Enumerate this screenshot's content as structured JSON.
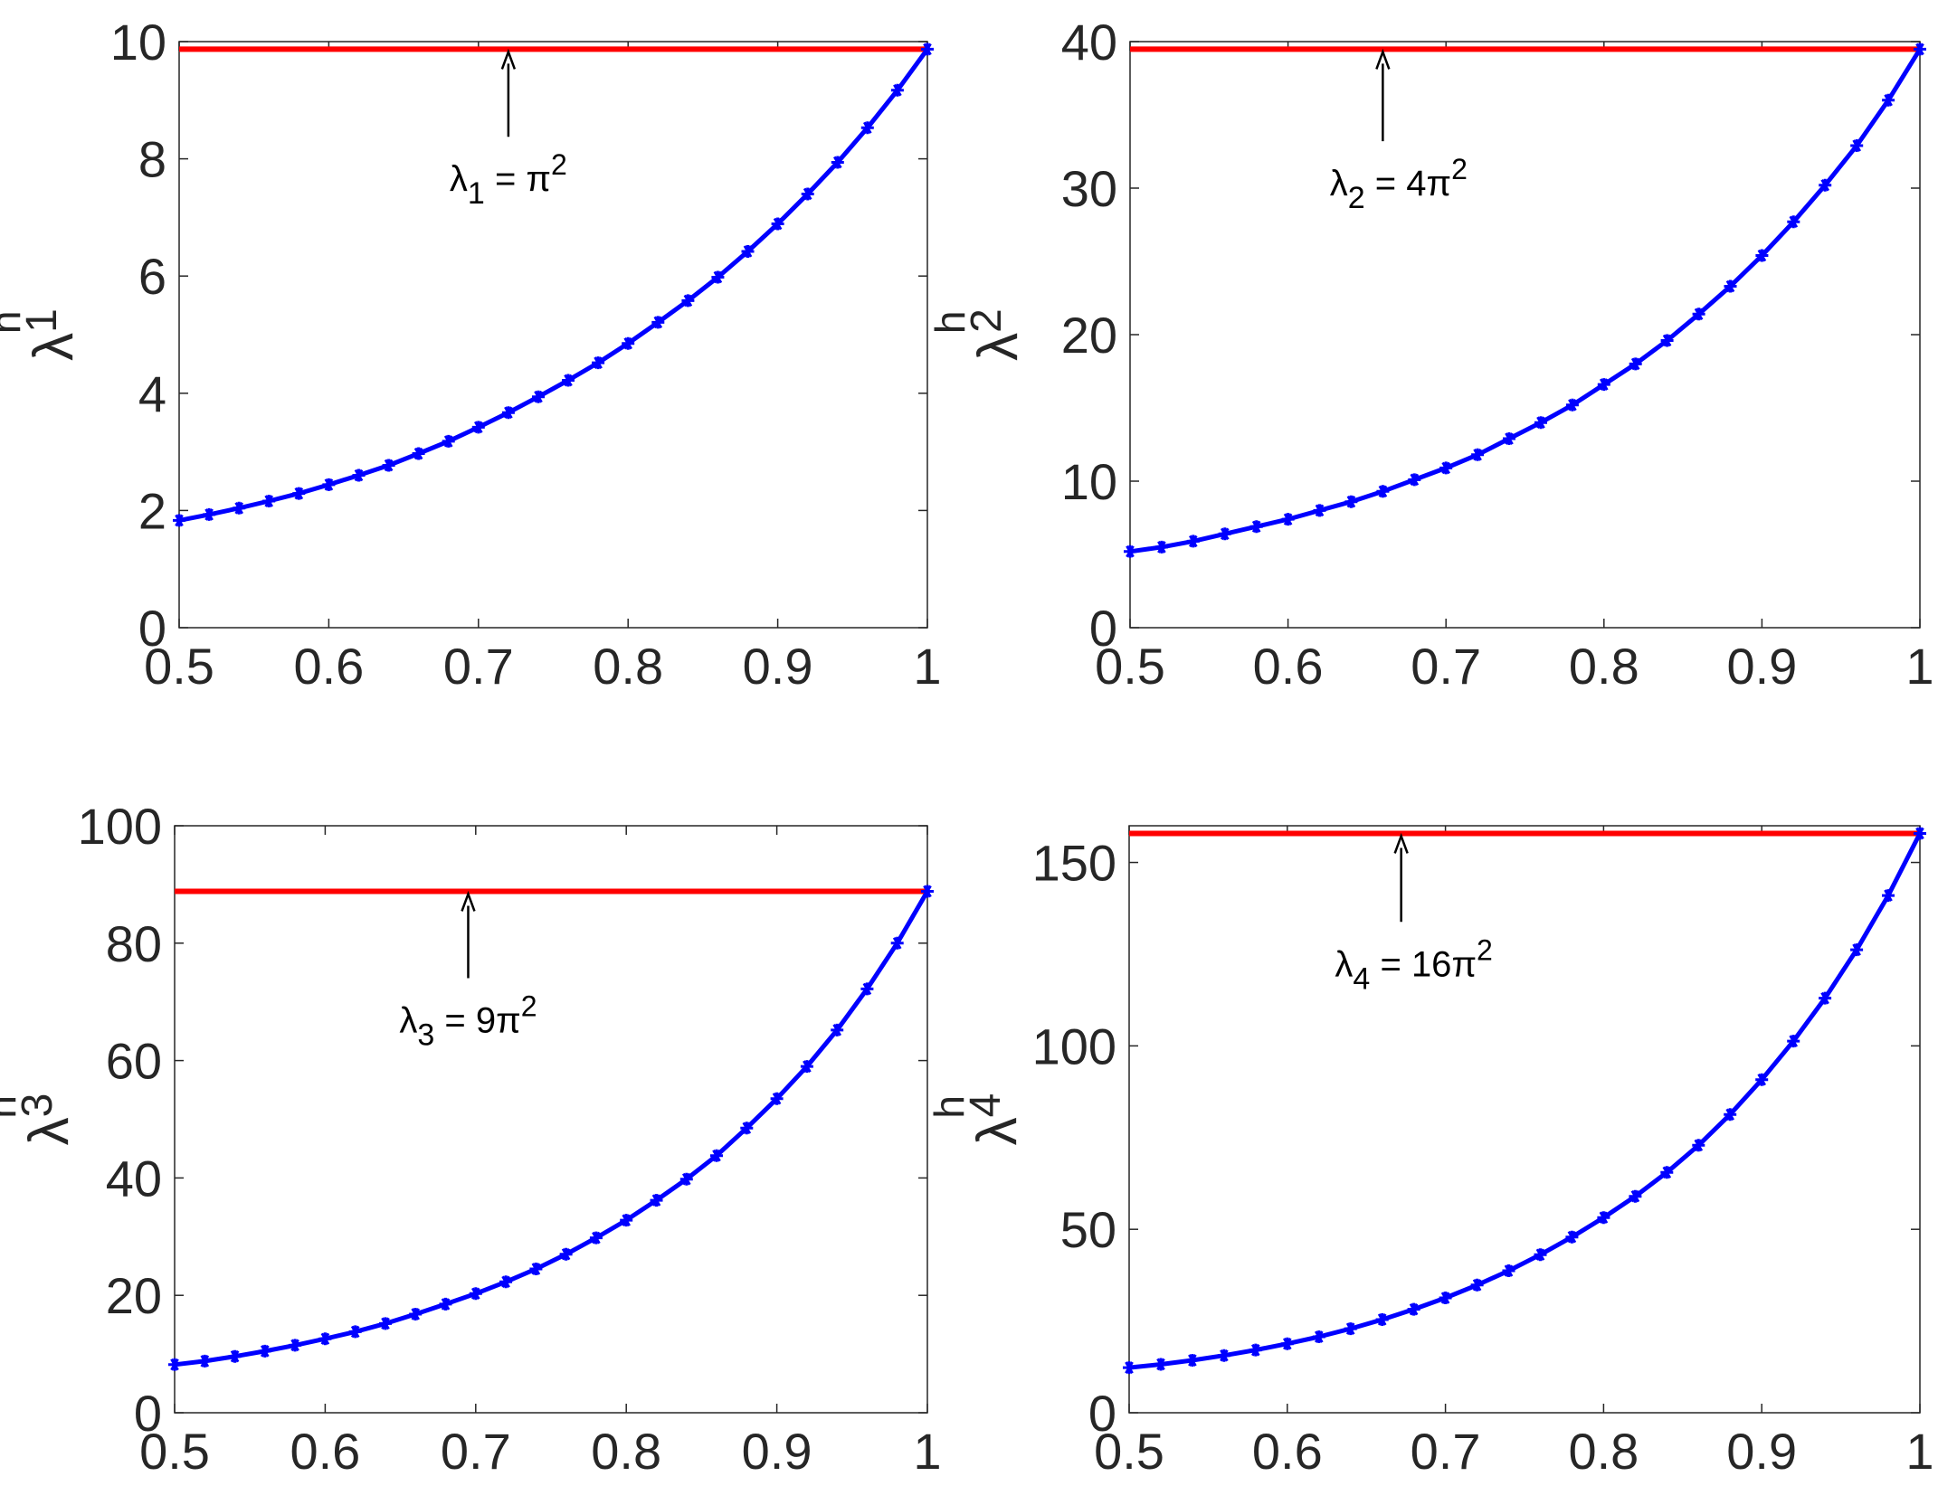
{
  "chart_data": [
    {
      "type": "line",
      "ylabel": {
        "symbol": "λ",
        "sup": "h",
        "sub": "1"
      },
      "xlim": [
        0.5,
        1
      ],
      "ylim": [
        0,
        10
      ],
      "xticks": [
        "0.5",
        "0.6",
        "0.7",
        "0.8",
        "0.9",
        "1"
      ],
      "yticks": [
        "0",
        "2",
        "4",
        "6",
        "8",
        "10"
      ],
      "reference_line": {
        "value": 9.87,
        "color": "#ff0000"
      },
      "annotation": {
        "symbol": "λ",
        "sub": "1",
        "rhs_prefix": " = ",
        "rhs_coef": "",
        "rhs_pi": "π",
        "rhs_sup": "2",
        "arrow_x": 0.72,
        "text_x": 0.72,
        "text_y": 7.45
      },
      "series": [
        {
          "color": "#0000ff",
          "marker": "star",
          "x": [
            0.5,
            0.52,
            0.54,
            0.56,
            0.58,
            0.6,
            0.62,
            0.64,
            0.66,
            0.68,
            0.7,
            0.72,
            0.74,
            0.76,
            0.78,
            0.8,
            0.82,
            0.84,
            0.86,
            0.88,
            0.9,
            0.92,
            0.94,
            0.96,
            0.98,
            1.0
          ],
          "y": [
            1.83,
            1.93,
            2.04,
            2.16,
            2.29,
            2.44,
            2.6,
            2.77,
            2.97,
            3.18,
            3.42,
            3.67,
            3.94,
            4.22,
            4.52,
            4.85,
            5.21,
            5.58,
            5.98,
            6.42,
            6.89,
            7.4,
            7.94,
            8.53,
            9.17,
            9.87
          ]
        }
      ]
    },
    {
      "type": "line",
      "ylabel": {
        "symbol": "λ",
        "sup": "h",
        "sub": "2"
      },
      "xlim": [
        0.5,
        1
      ],
      "ylim": [
        0,
        40
      ],
      "xticks": [
        "0.5",
        "0.6",
        "0.7",
        "0.8",
        "0.9",
        "1"
      ],
      "yticks": [
        "0",
        "10",
        "20",
        "30",
        "40"
      ],
      "reference_line": {
        "value": 39.48,
        "color": "#ff0000"
      },
      "annotation": {
        "symbol": "λ",
        "sub": "2",
        "rhs_prefix": " = ",
        "rhs_coef": "4",
        "rhs_pi": "π",
        "rhs_sup": "2",
        "arrow_x": 0.66,
        "text_x": 0.67,
        "text_y": 29.5
      },
      "series": [
        {
          "color": "#0000ff",
          "marker": "star",
          "x": [
            0.5,
            0.52,
            0.54,
            0.56,
            0.58,
            0.6,
            0.62,
            0.64,
            0.66,
            0.68,
            0.7,
            0.72,
            0.74,
            0.76,
            0.78,
            0.8,
            0.82,
            0.84,
            0.86,
            0.88,
            0.9,
            0.92,
            0.94,
            0.96,
            0.98,
            1.0
          ],
          "y": [
            5.2,
            5.5,
            5.9,
            6.4,
            6.9,
            7.4,
            8.0,
            8.6,
            9.3,
            10.1,
            10.9,
            11.8,
            12.9,
            14.0,
            15.2,
            16.6,
            18.0,
            19.6,
            21.4,
            23.3,
            25.4,
            27.7,
            30.2,
            32.9,
            36.0,
            39.48
          ]
        }
      ]
    },
    {
      "type": "line",
      "ylabel": {
        "symbol": "λ",
        "sup": "h",
        "sub": "3"
      },
      "xlim": [
        0.5,
        1
      ],
      "ylim": [
        0,
        100
      ],
      "xticks": [
        "0.5",
        "0.6",
        "0.7",
        "0.8",
        "0.9",
        "1"
      ],
      "yticks": [
        "0",
        "20",
        "40",
        "60",
        "80",
        "100"
      ],
      "reference_line": {
        "value": 88.83,
        "color": "#ff0000"
      },
      "annotation": {
        "symbol": "λ",
        "sub": "3",
        "rhs_prefix": " = ",
        "rhs_coef": "9",
        "rhs_pi": "π",
        "rhs_sup": "2",
        "arrow_x": 0.695,
        "text_x": 0.695,
        "text_y": 64.8
      },
      "series": [
        {
          "color": "#0000ff",
          "marker": "star",
          "x": [
            0.5,
            0.52,
            0.54,
            0.56,
            0.58,
            0.6,
            0.62,
            0.64,
            0.66,
            0.68,
            0.7,
            0.72,
            0.74,
            0.76,
            0.78,
            0.8,
            0.82,
            0.84,
            0.86,
            0.88,
            0.9,
            0.92,
            0.94,
            0.96,
            0.98,
            1.0
          ],
          "y": [
            8.2,
            8.8,
            9.6,
            10.5,
            11.5,
            12.6,
            13.8,
            15.2,
            16.8,
            18.5,
            20.3,
            22.3,
            24.5,
            27.0,
            29.8,
            32.8,
            36.2,
            39.8,
            43.8,
            48.5,
            53.5,
            59.0,
            65.2,
            72.2,
            80.0,
            88.83
          ]
        }
      ]
    },
    {
      "type": "line",
      "ylabel": {
        "symbol": "λ",
        "sup": "h",
        "sub": "4"
      },
      "xlim": [
        0.5,
        1
      ],
      "ylim": [
        0,
        160
      ],
      "xticks": [
        "0.5",
        "0.6",
        "0.7",
        "0.8",
        "0.9",
        "1"
      ],
      "yticks": [
        "0",
        "50",
        "100",
        "150"
      ],
      "reference_line": {
        "value": 157.91,
        "color": "#ff0000"
      },
      "annotation": {
        "symbol": "λ",
        "sub": "4",
        "rhs_prefix": " = ",
        "rhs_coef": "16",
        "rhs_pi": "π",
        "rhs_sup": "2",
        "arrow_x": 0.672,
        "text_x": 0.68,
        "text_y": 119
      },
      "series": [
        {
          "color": "#0000ff",
          "marker": "star",
          "x": [
            0.5,
            0.52,
            0.54,
            0.56,
            0.58,
            0.6,
            0.62,
            0.64,
            0.66,
            0.68,
            0.7,
            0.72,
            0.74,
            0.76,
            0.78,
            0.8,
            0.82,
            0.84,
            0.86,
            0.88,
            0.9,
            0.92,
            0.94,
            0.96,
            0.98,
            1.0
          ],
          "y": [
            12.3,
            13.2,
            14.3,
            15.6,
            17.1,
            18.8,
            20.7,
            22.9,
            25.4,
            28.2,
            31.3,
            34.8,
            38.7,
            43.1,
            47.9,
            53.2,
            59.0,
            65.5,
            72.9,
            81.3,
            90.8,
            101.3,
            113.0,
            126.2,
            141.0,
            157.91
          ]
        }
      ]
    }
  ]
}
